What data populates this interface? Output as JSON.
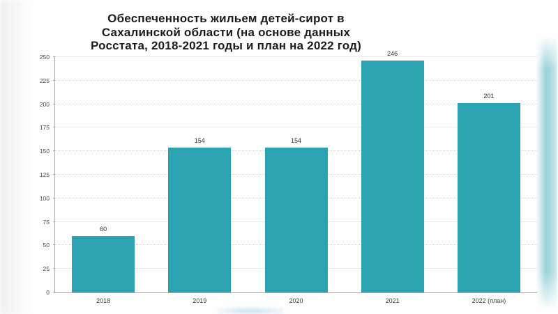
{
  "chart_data": {
    "type": "bar",
    "title": "Обеспеченность жильем детей-сирот в Сахалинской области (на основе данных Росстата, 2018-2021 годы и план на 2022 год)",
    "title_lines": [
      "Обеспеченность жильем детей-сирот в",
      "Сахалинской области (на основе данных",
      "Росстата, 2018-2021 годы и план на 2022 год)"
    ],
    "categories": [
      "2018",
      "2019",
      "2020",
      "2021",
      "2022 (план)"
    ],
    "values": [
      60,
      154,
      154,
      246,
      201
    ],
    "value_labels": [
      "60",
      "154",
      "154",
      "246",
      "201"
    ],
    "xlabel": "",
    "ylabel": "",
    "ylim": [
      0,
      250
    ],
    "yticks": [
      0,
      25,
      50,
      75,
      100,
      125,
      150,
      175,
      200,
      225,
      250
    ],
    "grid": "horizontal-dotted",
    "legend": "none"
  },
  "colors": {
    "bar": "#2ca3b1",
    "axis": "#a8a8a8",
    "grid": "#d4d4d4",
    "title": "#1c1c1e",
    "tick_label": "#4a4a4a",
    "value_label": "#2e2e2e",
    "x_label": "#3f3f3f",
    "edge_glow": "#2ca3b1"
  }
}
